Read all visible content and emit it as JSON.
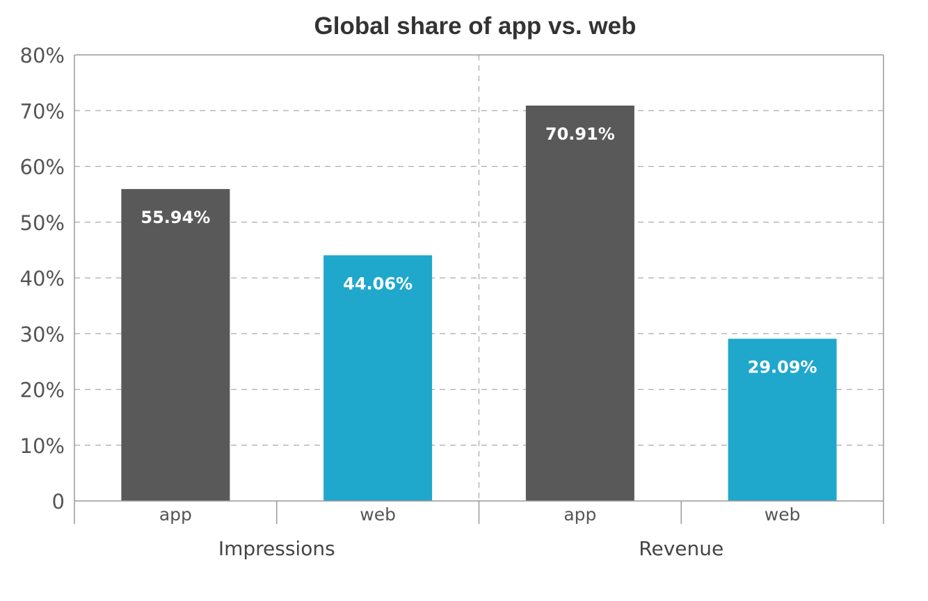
{
  "chart_data": {
    "type": "bar",
    "title": "Global share of app vs. web",
    "groups": [
      {
        "label": "Impressions",
        "bars": [
          {
            "category": "app",
            "value": 55.94,
            "label": "55.94%"
          },
          {
            "category": "web",
            "value": 44.06,
            "label": "44.06%"
          }
        ]
      },
      {
        "label": "Revenue",
        "bars": [
          {
            "category": "app",
            "value": 70.91,
            "label": "70.91%"
          },
          {
            "category": "web",
            "value": 29.09,
            "label": "29.09%"
          }
        ]
      }
    ],
    "ylim": [
      0,
      80
    ],
    "yticks": [
      "0",
      "10%",
      "20%",
      "30%",
      "40%",
      "50%",
      "60%",
      "70%",
      "80%"
    ],
    "grid": true,
    "legend": "none",
    "colors": {
      "app": "#595959",
      "web": "#1fa8cc"
    }
  }
}
